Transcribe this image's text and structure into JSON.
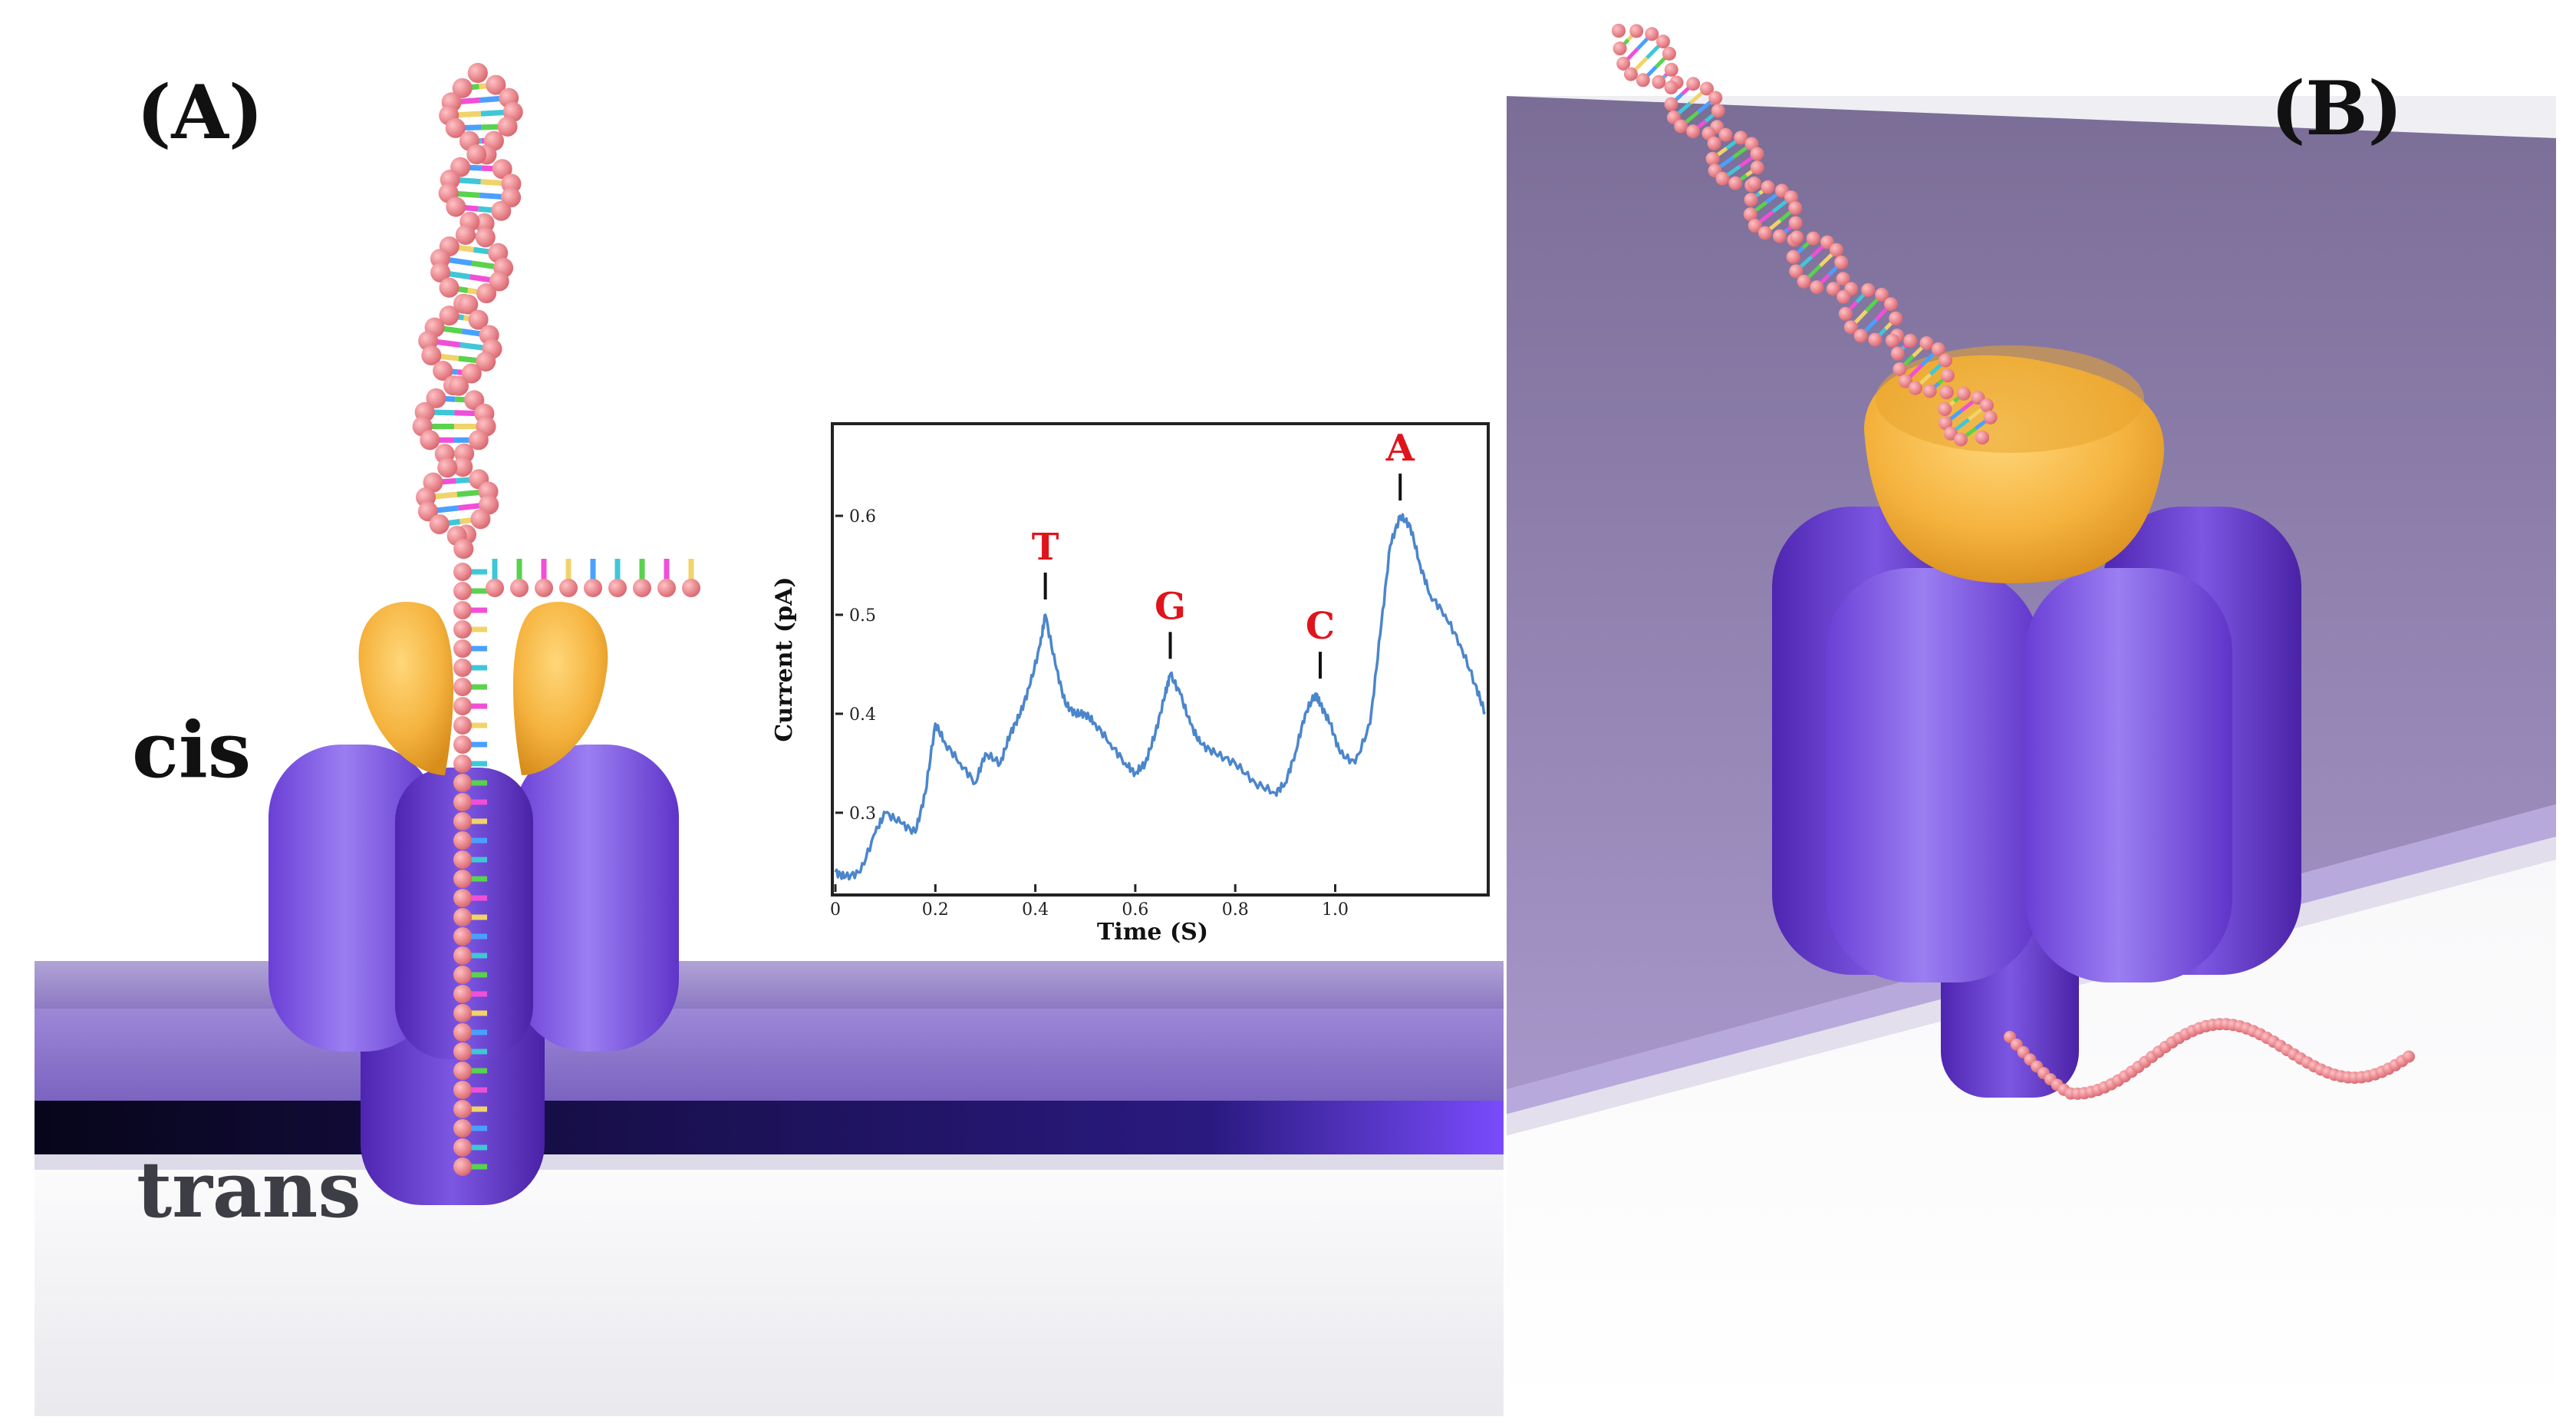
{
  "panel_a": {
    "label": "(A)",
    "cis_label": "cis",
    "trans_label": "trans"
  },
  "panel_b": {
    "label": "(B)"
  },
  "colors": {
    "membrane": "#8f7bc4",
    "pore": "#7a52e0",
    "cap": "#f3b03c",
    "dna_backbone": "#e8828a",
    "signal": "#4b86cc",
    "base_label": "#e0141b"
  },
  "chart_data": {
    "type": "line",
    "xlabel": "Time (S)",
    "ylabel": "Current (pA)",
    "xlim": [
      0,
      1.3
    ],
    "ylim": [
      0.22,
      0.69
    ],
    "x_ticks": [
      "0",
      "0.2",
      "0.4",
      "0.6",
      "0.8",
      "1.0"
    ],
    "x_tick_values": [
      0,
      0.2,
      0.4,
      0.6,
      0.8,
      1.0
    ],
    "y_ticks": [
      "0.3",
      "0.4",
      "0.5",
      "0.6"
    ],
    "y_tick_values": [
      0.3,
      0.4,
      0.5,
      0.6
    ],
    "series": [
      {
        "x": [
          0,
          0.02,
          0.05,
          0.08,
          0.1,
          0.13,
          0.16,
          0.18,
          0.2,
          0.22,
          0.25,
          0.28,
          0.3,
          0.33,
          0.35,
          0.37,
          0.39,
          0.41,
          0.42,
          0.44,
          0.46,
          0.48,
          0.5,
          0.52,
          0.55,
          0.58,
          0.6,
          0.62,
          0.64,
          0.66,
          0.67,
          0.69,
          0.71,
          0.73,
          0.76,
          0.8,
          0.84,
          0.88,
          0.9,
          0.92,
          0.94,
          0.96,
          0.97,
          0.99,
          1.01,
          1.04,
          1.07,
          1.09,
          1.11,
          1.13,
          1.15,
          1.17,
          1.19,
          1.22,
          1.25,
          1.28,
          1.3
        ],
        "y": [
          0.24,
          0.235,
          0.24,
          0.28,
          0.3,
          0.29,
          0.28,
          0.32,
          0.39,
          0.37,
          0.35,
          0.33,
          0.36,
          0.35,
          0.38,
          0.4,
          0.43,
          0.47,
          0.5,
          0.45,
          0.41,
          0.4,
          0.4,
          0.39,
          0.37,
          0.35,
          0.34,
          0.35,
          0.38,
          0.42,
          0.44,
          0.42,
          0.39,
          0.37,
          0.36,
          0.35,
          0.33,
          0.32,
          0.33,
          0.36,
          0.4,
          0.42,
          0.41,
          0.39,
          0.36,
          0.35,
          0.39,
          0.48,
          0.57,
          0.6,
          0.59,
          0.55,
          0.52,
          0.5,
          0.47,
          0.43,
          0.4
        ]
      }
    ],
    "annotations": [
      {
        "label": "T",
        "x": 0.42,
        "y": 0.5
      },
      {
        "label": "G",
        "x": 0.67,
        "y": 0.44
      },
      {
        "label": "C",
        "x": 0.97,
        "y": 0.42
      },
      {
        "label": "A",
        "x": 1.13,
        "y": 0.6
      }
    ]
  }
}
